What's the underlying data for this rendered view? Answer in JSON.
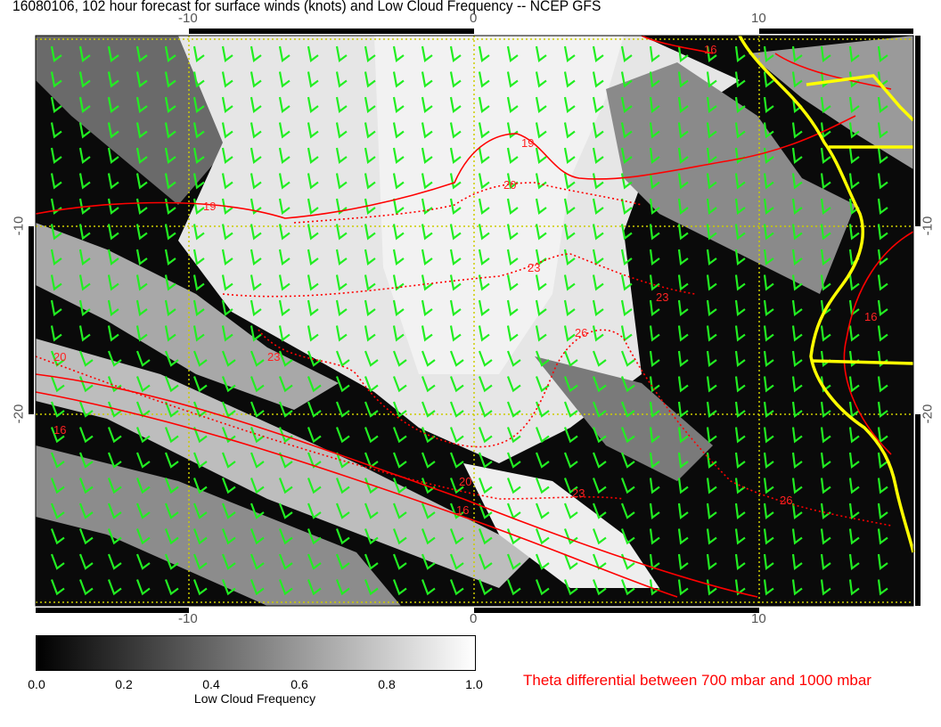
{
  "title": "16080106, 102 hour forecast for surface winds (knots) and Low Cloud Frequency -- NCEP GFS",
  "map": {
    "lon_ticks": [
      "-10",
      "0",
      "10"
    ],
    "lon_tick_values": [
      -10,
      0,
      10
    ],
    "lat_ticks": [
      "-10",
      "-20"
    ],
    "lat_tick_values": [
      -10,
      -20
    ],
    "contour_labels": [
      "16",
      "19",
      "20",
      "23",
      "26"
    ],
    "colors": {
      "wind_barbs": "#22ee22",
      "contours": "#ff0000",
      "coastline": "#ffff00",
      "gridlines": "#dddd00"
    }
  },
  "colorbar": {
    "labels": [
      "0.0",
      "0.2",
      "0.4",
      "0.6",
      "0.8",
      "1.0"
    ],
    "title": "Low Cloud Frequency",
    "range": [
      0,
      1
    ]
  },
  "legend_text": "Theta differential between 700 mbar and 1000 mbar"
}
